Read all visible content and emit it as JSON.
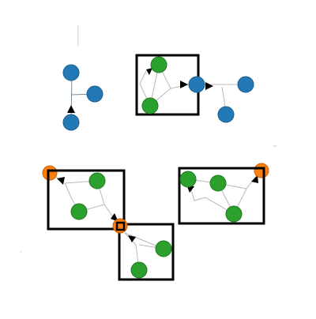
{
  "colors": {
    "blue": "#2279b5",
    "blue_stroke": "#1a5d8c",
    "green": "#2ca02c",
    "green_stroke": "#1f7a1f",
    "orange": "#ff7f0e",
    "orange_stroke": "#c4600a",
    "box": "#000000",
    "edge": "#b8b8b8"
  },
  "node_types": [
    "blue",
    "green",
    "orange"
  ],
  "clusters": [
    {
      "id": "top-center",
      "node_color": "green",
      "members": 2
    },
    {
      "id": "mid-left",
      "node_color": "green",
      "members": 2
    },
    {
      "id": "mid-right",
      "node_color": "green",
      "members": 3
    },
    {
      "id": "bottom-center",
      "node_color": "green",
      "members": 2
    }
  ],
  "groups": {
    "blue_left": {
      "node_color": "blue",
      "members": 3
    },
    "blue_right": {
      "node_color": "blue",
      "members": 3
    },
    "orange_nodes": {
      "node_color": "orange",
      "members": 3
    }
  }
}
